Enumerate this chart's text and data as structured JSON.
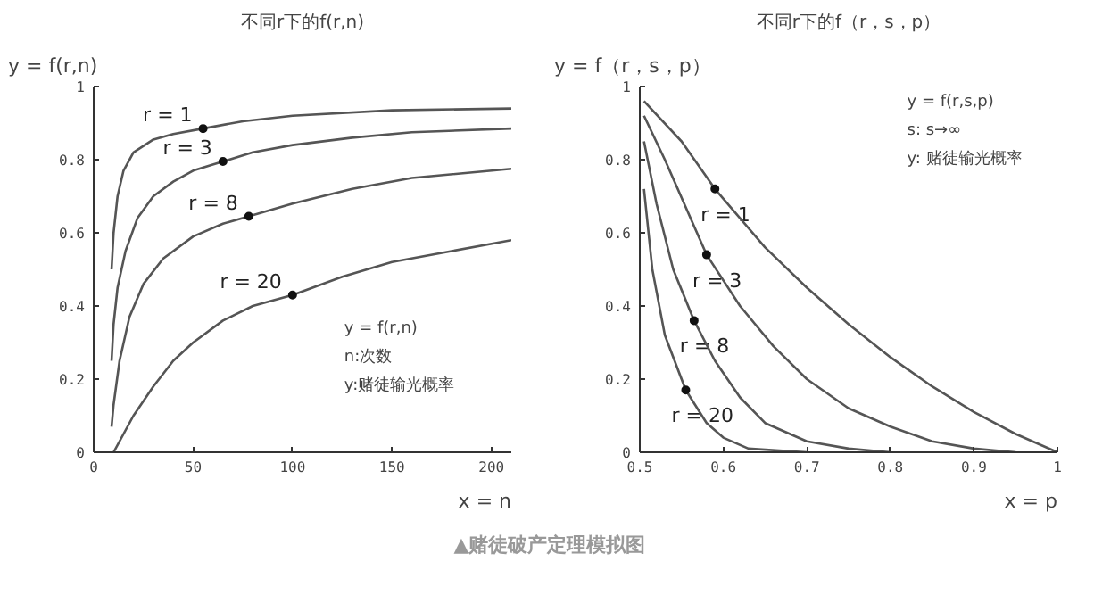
{
  "chart_data": [
    {
      "type": "line",
      "title": "不同r下的f(r,n)",
      "xlabel": "x = n",
      "ylabel": "y = f(r,n)",
      "xlim": [
        0,
        210
      ],
      "ylim": [
        0,
        1
      ],
      "xticks": [
        0,
        50,
        100,
        150,
        200
      ],
      "yticks": [
        0,
        0.2,
        0.4,
        0.6,
        0.8,
        1
      ],
      "grid": false,
      "marker": "none",
      "line_style": "solid",
      "series": [
        {
          "color": "#555555",
          "x": [
            9,
            10,
            12,
            15,
            20,
            30,
            40,
            55,
            75,
            100,
            150,
            210
          ],
          "values": [
            0.5,
            0.6,
            0.7,
            0.77,
            0.82,
            0.855,
            0.87,
            0.885,
            0.905,
            0.92,
            0.935,
            0.94
          ]
        },
        {
          "color": "#555555",
          "x": [
            9,
            10,
            12,
            16,
            22,
            30,
            40,
            50,
            65,
            80,
            100,
            130,
            160,
            210
          ],
          "values": [
            0.25,
            0.35,
            0.45,
            0.55,
            0.64,
            0.7,
            0.74,
            0.77,
            0.795,
            0.82,
            0.84,
            0.86,
            0.875,
            0.885
          ]
        },
        {
          "color": "#555555",
          "x": [
            9,
            10,
            13,
            18,
            25,
            35,
            50,
            65,
            78,
            100,
            130,
            160,
            210
          ],
          "values": [
            0.07,
            0.13,
            0.25,
            0.37,
            0.46,
            0.53,
            0.59,
            0.625,
            0.645,
            0.68,
            0.72,
            0.75,
            0.775
          ]
        },
        {
          "color": "#555555",
          "x": [
            10,
            20,
            30,
            40,
            50,
            65,
            80,
            100,
            125,
            150,
            180,
            210
          ],
          "values": [
            0,
            0.1,
            0.18,
            0.25,
            0.3,
            0.36,
            0.4,
            0.43,
            0.48,
            0.52,
            0.55,
            0.58
          ]
        }
      ],
      "annotations": [
        {
          "text": "r = 1",
          "x": 55,
          "y": 0.885
        },
        {
          "text": "r = 3",
          "x": 65,
          "y": 0.795
        },
        {
          "text": "r = 8",
          "x": 78,
          "y": 0.645
        },
        {
          "text": "r = 20",
          "x": 100,
          "y": 0.43
        },
        "y = f(r,n)",
        "n:次数",
        "y:赌徒输光概率"
      ]
    },
    {
      "type": "line",
      "title": "不同r下的f（r，s，p）",
      "xlabel": "x = p",
      "ylabel": "y = f（r，s，p）",
      "xlim": [
        0.5,
        1
      ],
      "ylim": [
        0,
        1
      ],
      "xticks": [
        0.5,
        0.6,
        0.7,
        0.8,
        0.9,
        1
      ],
      "yticks": [
        0,
        0.2,
        0.4,
        0.6,
        0.8,
        1
      ],
      "grid": false,
      "marker": "none",
      "line_style": "solid",
      "series": [
        {
          "color": "#555555",
          "x": [
            0.505,
            0.55,
            0.59,
            0.65,
            0.7,
            0.75,
            0.8,
            0.85,
            0.9,
            0.95,
            1
          ],
          "values": [
            0.96,
            0.85,
            0.72,
            0.56,
            0.45,
            0.35,
            0.26,
            0.18,
            0.11,
            0.05,
            0
          ]
        },
        {
          "color": "#555555",
          "x": [
            0.505,
            0.53,
            0.555,
            0.58,
            0.62,
            0.66,
            0.7,
            0.75,
            0.8,
            0.85,
            0.9,
            0.95
          ],
          "values": [
            0.92,
            0.8,
            0.67,
            0.54,
            0.4,
            0.29,
            0.2,
            0.12,
            0.07,
            0.03,
            0.01,
            0
          ]
        },
        {
          "color": "#555555",
          "x": [
            0.505,
            0.52,
            0.54,
            0.565,
            0.59,
            0.62,
            0.65,
            0.7,
            0.75,
            0.8
          ],
          "values": [
            0.85,
            0.68,
            0.5,
            0.36,
            0.25,
            0.15,
            0.08,
            0.03,
            0.01,
            0
          ]
        },
        {
          "color": "#555555",
          "x": [
            0.505,
            0.515,
            0.53,
            0.555,
            0.58,
            0.6,
            0.63,
            0.7
          ],
          "values": [
            0.72,
            0.5,
            0.32,
            0.17,
            0.08,
            0.04,
            0.01,
            0
          ]
        }
      ],
      "annotations": [
        {
          "text": "r = 1",
          "x": 0.59,
          "y": 0.72
        },
        {
          "text": "r = 3",
          "x": 0.58,
          "y": 0.54
        },
        {
          "text": "r = 8",
          "x": 0.565,
          "y": 0.36
        },
        {
          "text": "r = 20",
          "x": 0.555,
          "y": 0.17
        },
        "y = f(r,s,p)",
        "s:  s→∞",
        "y:  赌徒输光概率"
      ]
    },
    {
      "type": "other",
      "annotations": [
        "▲赌徒破产定理模拟图"
      ]
    }
  ]
}
